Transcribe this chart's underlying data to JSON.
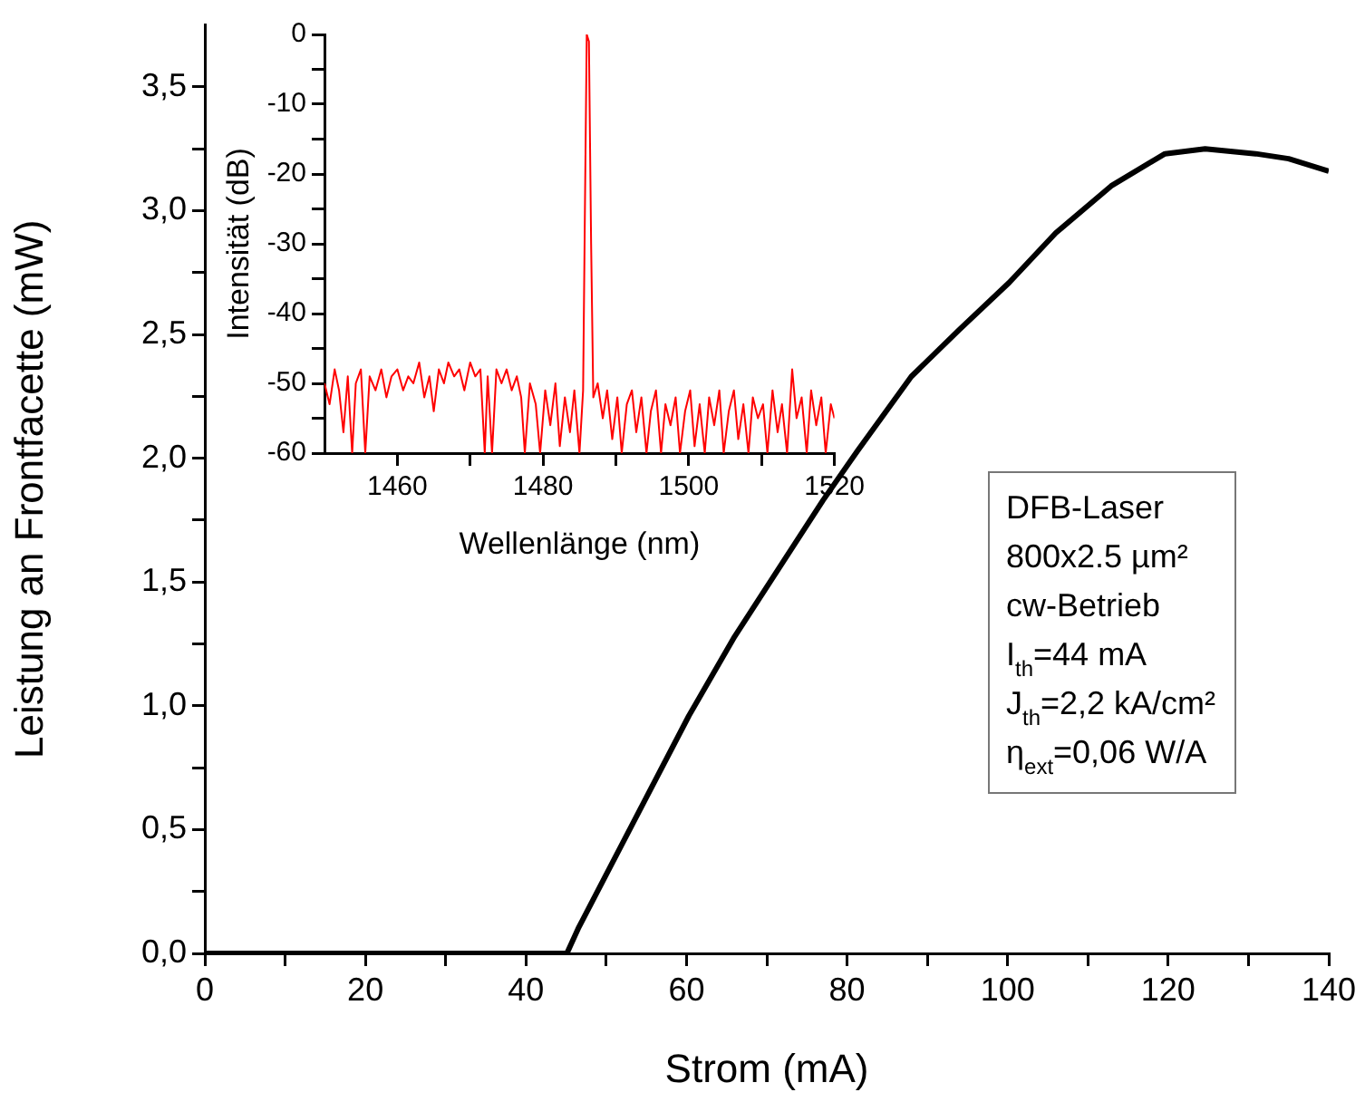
{
  "chart_data": [
    {
      "type": "line",
      "xlabel": "Strom (mA)",
      "ylabel": "Leistung an Frontfacette (mW)",
      "marker": "none",
      "grid": false,
      "legend": false,
      "x": [
        0,
        20,
        40,
        44,
        45.1,
        46.5,
        49.7,
        55,
        60.3,
        66,
        72.2,
        77,
        81.3,
        88,
        94,
        100.2,
        106,
        112.9,
        119.6,
        124.6,
        130.9,
        135,
        140
      ],
      "series": [
        {
          "color": "#000000",
          "values": [
            0,
            0,
            0,
            0,
            0,
            0.1,
            0.3,
            0.63,
            0.96,
            1.28,
            1.59,
            1.83,
            2.03,
            2.33,
            2.52,
            2.71,
            2.91,
            3.1,
            3.23,
            3.25,
            3.23,
            3.21,
            3.16
          ]
        }
      ],
      "xlim": [
        0,
        140
      ],
      "xticks": [
        0,
        {
          "value": 10,
          "label": null
        },
        20,
        {
          "value": 30,
          "label": null
        },
        40,
        {
          "value": 50,
          "label": null
        },
        60,
        {
          "value": 70,
          "label": null
        },
        80,
        {
          "value": 90,
          "label": null
        },
        100,
        {
          "value": 110,
          "label": null
        },
        120,
        {
          "value": 130,
          "label": null
        },
        140
      ],
      "ylim": [
        0,
        3.75
      ],
      "yticks": [
        {
          "value": 0,
          "label": "0,0"
        },
        {
          "value": 0.25,
          "label": null
        },
        {
          "value": 0.5,
          "label": "0,5"
        },
        {
          "value": 0.75,
          "label": null
        },
        {
          "value": 1,
          "label": "1,0"
        },
        {
          "value": 1.25,
          "label": null
        },
        {
          "value": 1.5,
          "label": "1,5"
        },
        {
          "value": 1.75,
          "label": null
        },
        {
          "value": 2,
          "label": "2,0"
        },
        {
          "value": 2.25,
          "label": null
        },
        {
          "value": 2.5,
          "label": "2,5"
        },
        {
          "value": 2.75,
          "label": null
        },
        {
          "value": 3,
          "label": "3,0"
        },
        {
          "value": 3.25,
          "label": null
        },
        {
          "value": 3.5,
          "label": "3,5"
        }
      ],
      "annotations": [
        "DFB-Laser",
        "800x2.5 µm²",
        "cw-Betrieb",
        "I$_{th}$=44 mA",
        "J$_{th}$=2,2 kA/cm²",
        "η$_{ext}$=0,06 W/A"
      ]
    },
    {
      "type": "line",
      "xlabel": "Wellenlänge (nm)",
      "ylabel": "Intensität (dB)",
      "marker": "none",
      "grid": false,
      "legend": false,
      "x": [
        1450,
        1450.7,
        1451.4,
        1452,
        1452.6,
        1453.2,
        1453.8,
        1454.3,
        1455,
        1455.6,
        1456.2,
        1457,
        1457.8,
        1458.5,
        1459.2,
        1460,
        1460.8,
        1461.5,
        1462.2,
        1463,
        1463.7,
        1464.4,
        1465,
        1465.7,
        1466.4,
        1467,
        1467.8,
        1468.5,
        1469.2,
        1470,
        1470.7,
        1471.4,
        1472,
        1472.4,
        1473,
        1473.6,
        1474.3,
        1475,
        1475.7,
        1476.4,
        1477,
        1477.5,
        1478.2,
        1479,
        1479.6,
        1480.3,
        1481,
        1481.7,
        1482.3,
        1483,
        1483.7,
        1484.3,
        1485,
        1485.5,
        1485.8,
        1486,
        1486.3,
        1486.6,
        1486.9,
        1487.5,
        1488.2,
        1488.8,
        1489.5,
        1490.2,
        1490.8,
        1491.5,
        1492.2,
        1492.8,
        1493.5,
        1494.2,
        1494.8,
        1495.5,
        1496.2,
        1496.8,
        1497.5,
        1498.2,
        1498.8,
        1499.5,
        1500.2,
        1500.8,
        1501.5,
        1502.2,
        1502.8,
        1503.5,
        1504.2,
        1504.8,
        1505.5,
        1506.2,
        1506.8,
        1507.5,
        1508.2,
        1508.8,
        1509.5,
        1510.2,
        1510.8,
        1511.5,
        1512.2,
        1512.8,
        1513.5,
        1514.2,
        1514.8,
        1515.5,
        1516.2,
        1516.8,
        1517.5,
        1518.2,
        1518.8,
        1519.5,
        1520
      ],
      "series": [
        {
          "color": "#ff0000",
          "values": [
            -50,
            -53,
            -48,
            -51,
            -57,
            -49,
            -60,
            -50,
            -48,
            -60,
            -49,
            -51,
            -48,
            -52,
            -49,
            -48,
            -51,
            -49,
            -50,
            -47,
            -52,
            -49,
            -54,
            -48,
            -50,
            -47,
            -49,
            -48,
            -51,
            -47,
            -49,
            -48,
            -60,
            -49,
            -60,
            -48,
            -50,
            -48,
            -51,
            -49,
            -52,
            -60,
            -50,
            -53,
            -60,
            -51,
            -56,
            -50,
            -59,
            -52,
            -57,
            -51,
            -60,
            -51,
            -20,
            0,
            -1,
            -30,
            -52,
            -50,
            -55,
            -51,
            -58,
            -52,
            -60,
            -53,
            -51,
            -57,
            -52,
            -60,
            -54,
            -51,
            -60,
            -53,
            -56,
            -52,
            -60,
            -54,
            -51,
            -59,
            -53,
            -60,
            -52,
            -56,
            -51,
            -60,
            -54,
            -51,
            -58,
            -53,
            -60,
            -52,
            -55,
            -53,
            -60,
            -51,
            -57,
            -53,
            -60,
            -48,
            -55,
            -52,
            -60,
            -51,
            -56,
            -52,
            -60,
            -53,
            -55
          ]
        }
      ],
      "xlim": [
        1450,
        1520
      ],
      "xticks": [
        1460,
        {
          "value": 1470,
          "label": null
        },
        1480,
        {
          "value": 1490,
          "label": null
        },
        1500,
        {
          "value": 1510,
          "label": null
        },
        1520
      ],
      "ylim": [
        -60,
        0
      ],
      "yticks": [
        -60,
        {
          "value": -55,
          "label": null
        },
        -50,
        {
          "value": -45,
          "label": null
        },
        -40,
        {
          "value": -35,
          "label": null
        },
        -30,
        {
          "value": -25,
          "label": null
        },
        -20,
        {
          "value": -15,
          "label": null
        },
        -10,
        {
          "value": -5,
          "label": null
        },
        0
      ]
    }
  ]
}
